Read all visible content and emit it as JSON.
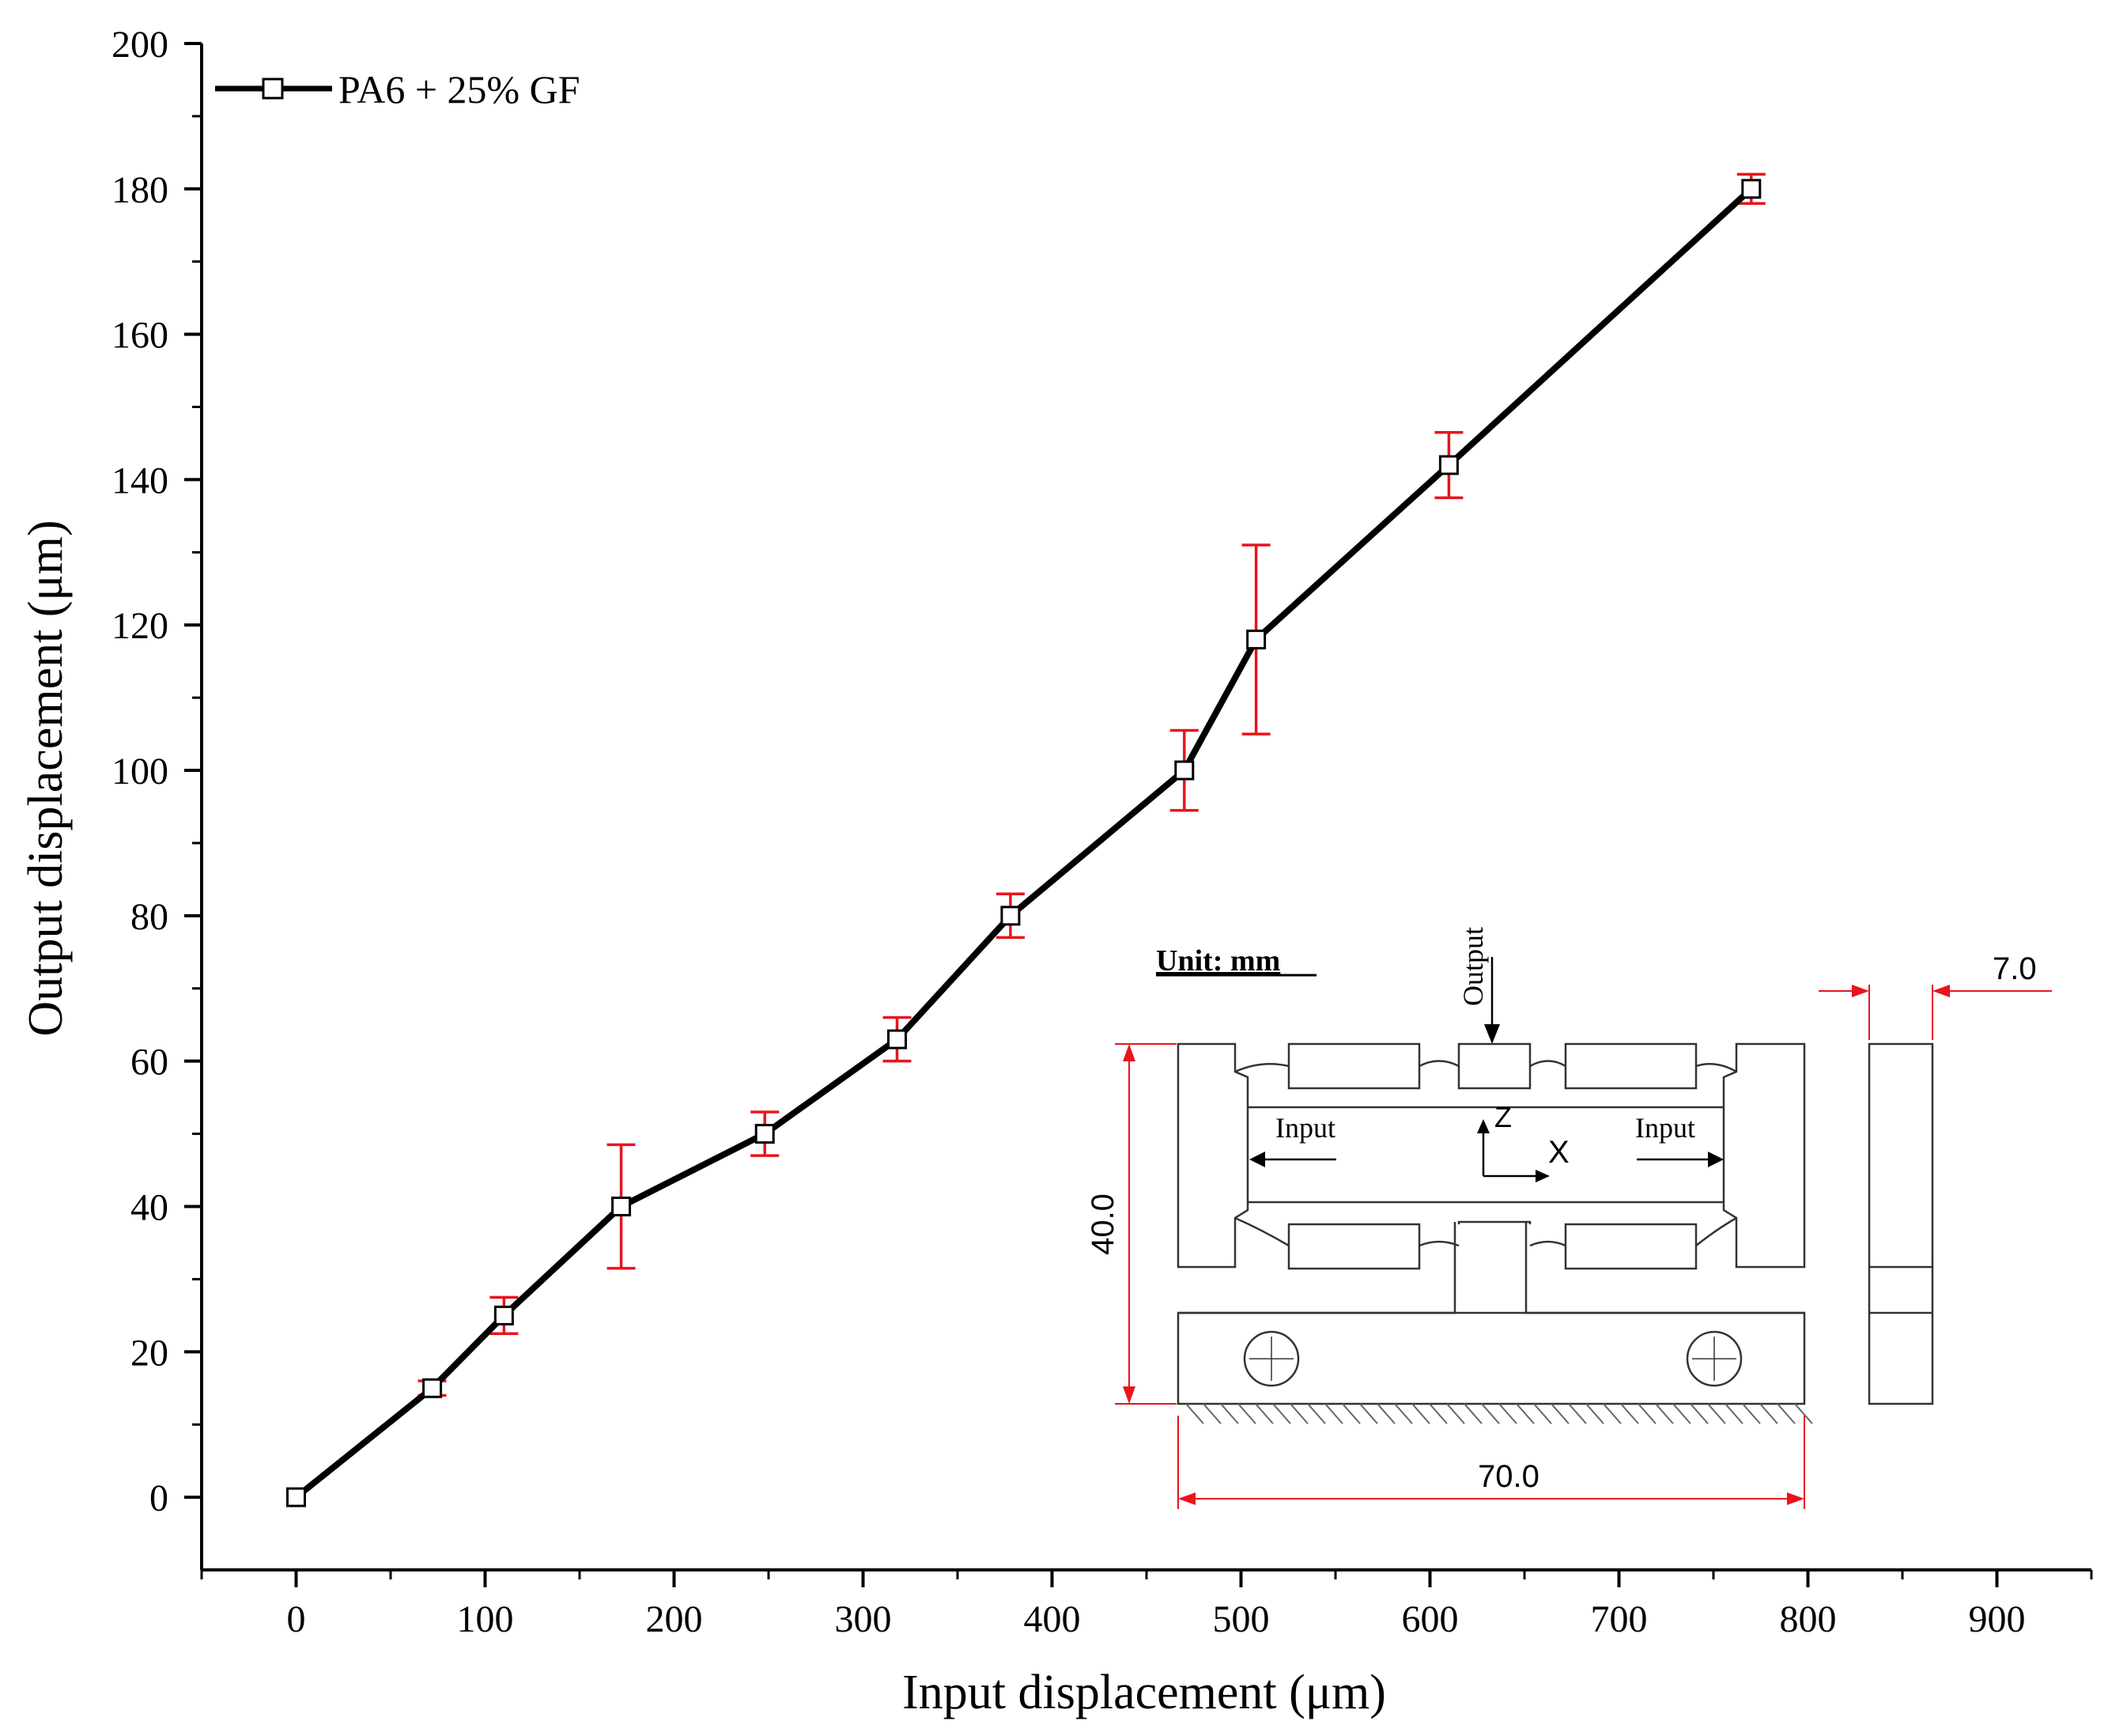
{
  "chart_data": {
    "type": "line",
    "xlabel": "Input displacement (μm)",
    "ylabel": "Output displacement (μm)",
    "xlim": [
      -50,
      950
    ],
    "ylim": [
      -10,
      200
    ],
    "x_ticks": [
      0,
      100,
      200,
      300,
      400,
      500,
      600,
      700,
      800,
      900
    ],
    "y_ticks": [
      0,
      20,
      40,
      60,
      80,
      100,
      120,
      140,
      160,
      180,
      200
    ],
    "legend_position": "top-left",
    "grid": false,
    "series": [
      {
        "name": "PA6 + 25% GF",
        "color": "#000000",
        "error_color": "#e8141e",
        "marker": "open-square",
        "points": [
          {
            "x": 0,
            "y": 0
          },
          {
            "x": 72,
            "y": 15,
            "err_low": 14,
            "err_high": 16
          },
          {
            "x": 110,
            "y": 25,
            "err_low": 22.5,
            "err_high": 27.5
          },
          {
            "x": 172,
            "y": 40,
            "err_low": 31.5,
            "err_high": 48.5
          },
          {
            "x": 248,
            "y": 50,
            "err_low": 47,
            "err_high": 53
          },
          {
            "x": 318,
            "y": 63,
            "err_low": 60,
            "err_high": 66
          },
          {
            "x": 378,
            "y": 80,
            "err_low": 77,
            "err_high": 83
          },
          {
            "x": 470,
            "y": 100,
            "err_low": 94.5,
            "err_high": 105.5
          },
          {
            "x": 508,
            "y": 118,
            "err_low": 105,
            "err_high": 131
          },
          {
            "x": 610,
            "y": 142,
            "err_low": 137.5,
            "err_high": 146.5
          },
          {
            "x": 770,
            "y": 180,
            "err_low": 178,
            "err_high": 182
          }
        ]
      }
    ]
  },
  "inset": {
    "unit_label": "Unit: mm",
    "output_label": "Output",
    "input_left_label": "Input",
    "input_right_label": "Input",
    "axis_z": "Z",
    "axis_x": "X",
    "dim_height": "40.0",
    "dim_width": "70.0",
    "dim_thickness": "7.0",
    "dim_color": "#e8141e"
  }
}
